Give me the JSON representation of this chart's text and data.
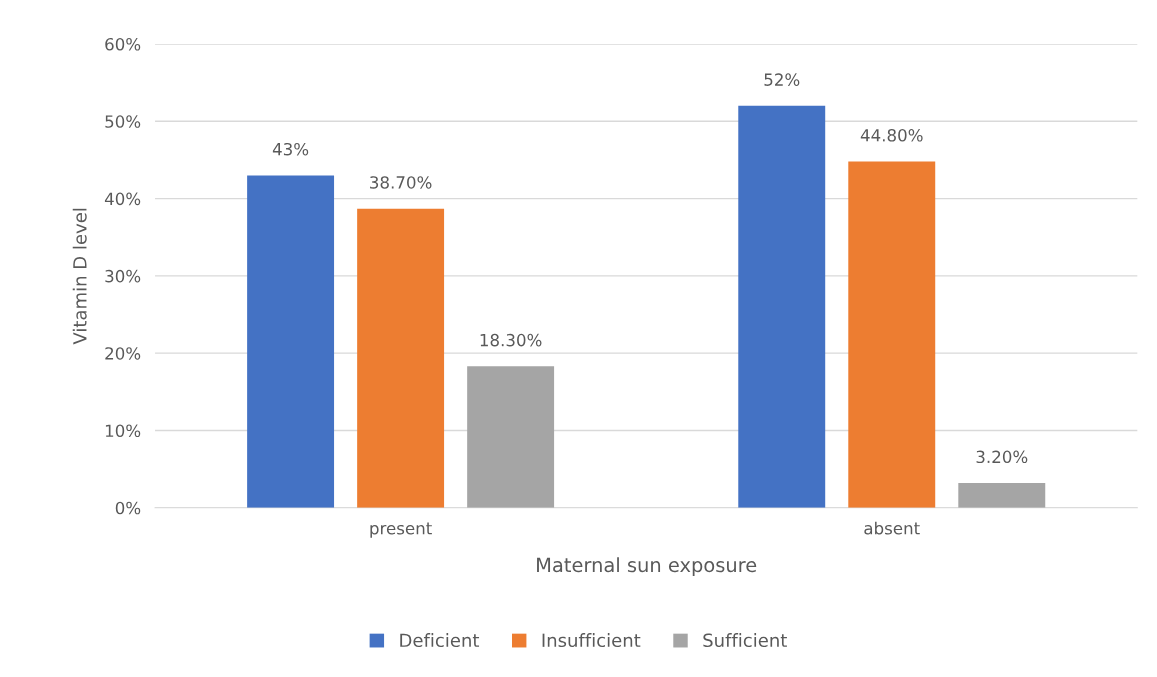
{
  "chart_data": {
    "type": "bar",
    "xlabel": "Maternal sun exposure",
    "ylabel": "Vitamin D level",
    "categories": [
      "present",
      "absent"
    ],
    "series": [
      {
        "name": "Deficient",
        "color": "#4472c4",
        "values": [
          43,
          52
        ],
        "value_labels": [
          "43%",
          "52%"
        ]
      },
      {
        "name": "Insufficient",
        "color": "#ed7d31",
        "values": [
          38.7,
          44.8
        ],
        "value_labels": [
          "38.70%",
          "44.80%"
        ]
      },
      {
        "name": "Sufficient",
        "color": "#a5a5a5",
        "values": [
          18.3,
          3.2
        ],
        "value_labels": [
          "18.30%",
          "3.20%"
        ]
      }
    ],
    "ylim": [
      0,
      60
    ],
    "yticks": [
      {
        "value": 0,
        "label": "0%"
      },
      {
        "value": 10,
        "label": "10%"
      },
      {
        "value": 20,
        "label": "20%"
      },
      {
        "value": 30,
        "label": "30%"
      },
      {
        "value": 40,
        "label": "40%"
      },
      {
        "value": 50,
        "label": "50%"
      },
      {
        "value": 60,
        "label": "60%"
      }
    ],
    "grid": "y",
    "legend": "bottom"
  }
}
